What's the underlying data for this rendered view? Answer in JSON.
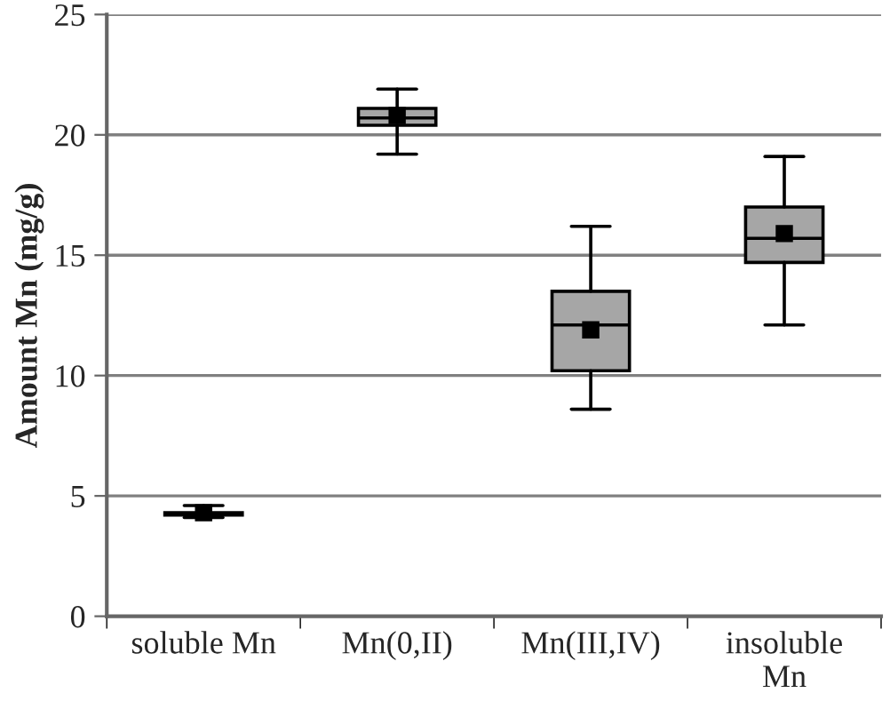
{
  "chart_data": {
    "type": "box",
    "ylabel": "Amount Mn (mg/g)",
    "categories": [
      "soluble Mn",
      "Mn(0,II)",
      "Mn(III,IV)",
      "insoluble\nMn"
    ],
    "boxes": [
      {
        "low": 4.1,
        "q1": 4.2,
        "median": 4.25,
        "q3": 4.3,
        "high": 4.6,
        "mean": 4.3
      },
      {
        "low": 19.2,
        "q1": 20.4,
        "median": 20.7,
        "q3": 21.1,
        "high": 21.9,
        "mean": 20.8
      },
      {
        "low": 8.6,
        "q1": 10.2,
        "median": 12.1,
        "q3": 13.5,
        "high": 16.2,
        "mean": 11.9
      },
      {
        "low": 12.1,
        "q1": 14.7,
        "median": 15.7,
        "q3": 17.0,
        "high": 19.1,
        "mean": 15.9
      }
    ],
    "color": "#a6a6a6",
    "marker": "square",
    "ylim": [
      0,
      25
    ],
    "yticks": [
      0,
      5,
      10,
      15,
      20,
      25
    ],
    "grid": "y"
  }
}
